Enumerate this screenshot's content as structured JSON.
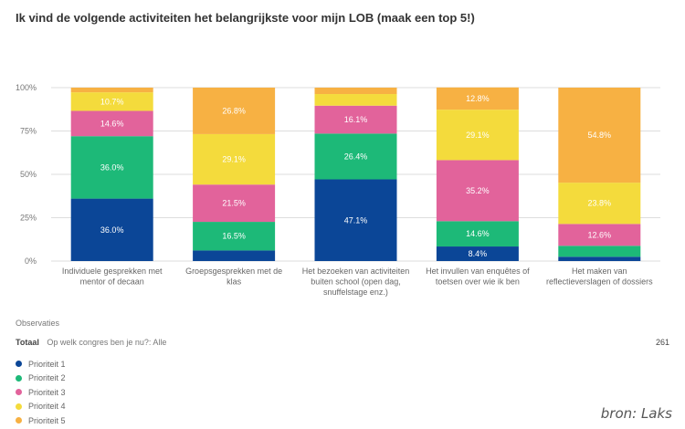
{
  "chart_data": {
    "type": "bar",
    "stacked": true,
    "title": "Ik vind de volgende activiteiten het belangrijkste voor mijn LOB (maak een top 5!)",
    "categories": [
      [
        "Individuele gesprekken met",
        "mentor of decaan"
      ],
      [
        "Groepsgesprekken met de",
        "klas"
      ],
      [
        "Het bezoeken van activiteiten",
        "buiten school (open dag,",
        "snuffelstage enz.)"
      ],
      [
        "Het invullen van enquêtes of",
        "toetsen over wie ik ben"
      ],
      [
        "Het maken van",
        "reflectieverslagen of dossiers"
      ]
    ],
    "ylim": [
      0,
      100
    ],
    "yticks": [
      "0%",
      "25%",
      "50%",
      "75%",
      "100%"
    ],
    "grid": true,
    "legend_position": "bottom-left",
    "series": [
      {
        "name": "Prioriteit 1",
        "color": "#0b4697",
        "values": [
          36.0,
          6.1,
          47.1,
          8.4,
          2.5
        ],
        "labels": [
          "36.0%",
          null,
          "47.1%",
          "8.4%",
          null
        ]
      },
      {
        "name": "Prioriteit 2",
        "color": "#1db978",
        "values": [
          36.0,
          16.5,
          26.4,
          14.6,
          6.3
        ],
        "labels": [
          "36.0%",
          "16.5%",
          "26.4%",
          "14.6%",
          null
        ]
      },
      {
        "name": "Prioriteit 3",
        "color": "#e2639b",
        "values": [
          14.6,
          21.5,
          16.1,
          35.2,
          12.6
        ],
        "labels": [
          "14.6%",
          "21.5%",
          "16.1%",
          "35.2%",
          "12.6%"
        ]
      },
      {
        "name": "Prioriteit 4",
        "color": "#f4db3c",
        "values": [
          10.7,
          29.1,
          6.7,
          29.1,
          23.8
        ],
        "labels": [
          "10.7%",
          "29.1%",
          null,
          "29.1%",
          "23.8%"
        ]
      },
      {
        "name": "Prioriteit 5",
        "color": "#f7b143",
        "values": [
          2.7,
          26.8,
          3.7,
          12.8,
          54.8
        ],
        "labels": [
          null,
          "26.8%",
          null,
          "12.8%",
          "54.8%"
        ]
      }
    ]
  },
  "observations": {
    "label": "Observaties",
    "total_label": "Totaal",
    "filter": "Op welk congres ben je nu?: Alle",
    "count": "261"
  },
  "source": "bron: Laks"
}
